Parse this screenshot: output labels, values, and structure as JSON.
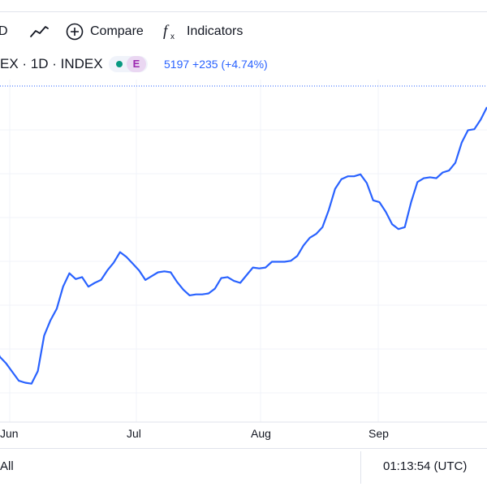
{
  "toolbar": {
    "interval_fragment": "D",
    "compare_label": "Compare",
    "indicators_label": "Indicators",
    "icons": [
      "line-chart-type-icon",
      "plus-circle-icon",
      "fx-icon"
    ]
  },
  "legend": {
    "symbol": "EX · 1D · INDEX",
    "status_badge": "E",
    "last_price": "5197",
    "change": "+235",
    "change_pct": "(+4.74%)"
  },
  "colors": {
    "line": "#2962ff",
    "dot": "#089981",
    "badge": "#9c27b0",
    "grid": "#f0f3fa"
  },
  "chart_data": {
    "type": "line",
    "x_ticks": [
      "Jun",
      "Jul",
      "Aug",
      "Sep"
    ],
    "series": [
      {
        "values": [
          56.4,
          54.8,
          54.1,
          53.2,
          52.3,
          52.1,
          52.0,
          53.3,
          57.0,
          58.6,
          59.8,
          62.1,
          63.5,
          62.9,
          63.1,
          62.1,
          62.5,
          62.8,
          63.8,
          64.6,
          65.7,
          65.2,
          64.5,
          63.8,
          62.8,
          63.2,
          63.6,
          63.7,
          63.6,
          62.6,
          61.8,
          61.2,
          61.3,
          61.3,
          61.4,
          61.9,
          63.0,
          63.1,
          62.7,
          62.5,
          63.3,
          64.1,
          64.0,
          64.1,
          64.7,
          64.7,
          64.7,
          64.8,
          65.3,
          66.4,
          67.2,
          67.6,
          68.3,
          70.1,
          72.3,
          73.3,
          73.6,
          73.6,
          73.8,
          72.9,
          71.1,
          70.9,
          69.9,
          68.6,
          68.1,
          68.3,
          70.9,
          73.0,
          73.4,
          73.5,
          73.4,
          74.0,
          74.2,
          75.0,
          77.1,
          78.4,
          78.5,
          79.5,
          80.8
        ]
      }
    ],
    "last_value": 5197,
    "change": 235,
    "change_pct": 4.74,
    "grid": true
  },
  "bottom": {
    "range_label": "All",
    "clock": "01:13:54 (UTC)"
  }
}
